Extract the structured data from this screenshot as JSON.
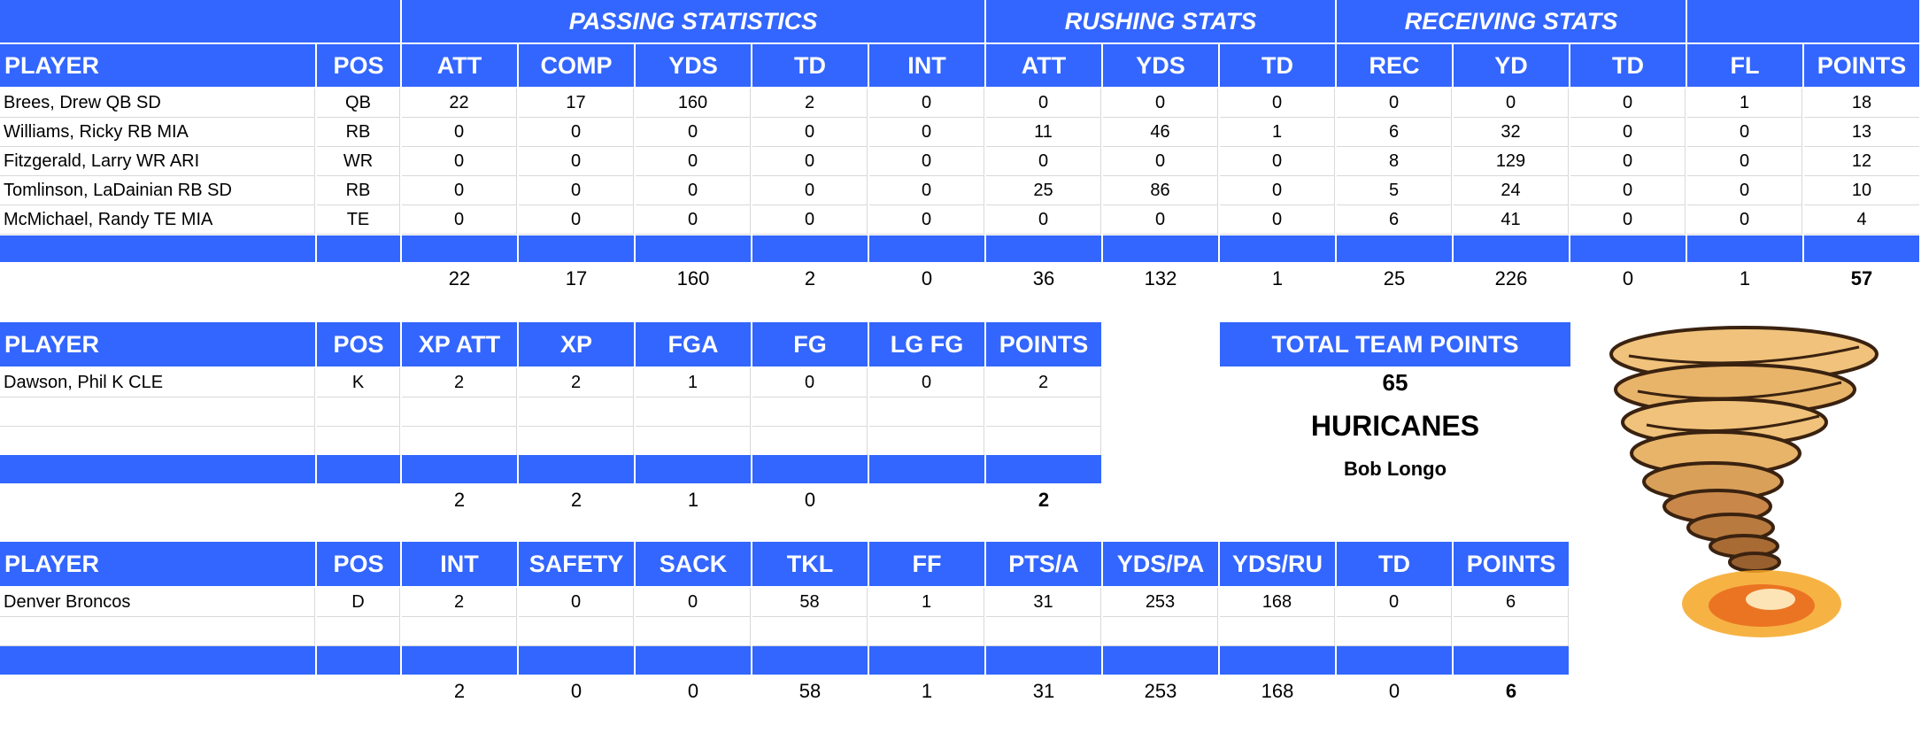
{
  "offense": {
    "group_headers": [
      "PASSING STATISTICS",
      "RUSHING STATS",
      "RECEIVING STATS"
    ],
    "columns": [
      "PLAYER",
      "POS",
      "ATT",
      "COMP",
      "YDS",
      "TD",
      "INT",
      "ATT",
      "YDS",
      "TD",
      "REC",
      "YD",
      "TD",
      "FL",
      "POINTS"
    ],
    "rows": [
      [
        "Brees, Drew QB SD",
        "QB",
        "22",
        "17",
        "160",
        "2",
        "0",
        "0",
        "0",
        "0",
        "0",
        "0",
        "0",
        "1",
        "18"
      ],
      [
        "Williams, Ricky RB MIA",
        "RB",
        "0",
        "0",
        "0",
        "0",
        "0",
        "11",
        "46",
        "1",
        "6",
        "32",
        "0",
        "0",
        "13"
      ],
      [
        "Fitzgerald, Larry WR ARI",
        "WR",
        "0",
        "0",
        "0",
        "0",
        "0",
        "0",
        "0",
        "0",
        "8",
        "129",
        "0",
        "0",
        "12"
      ],
      [
        "Tomlinson, LaDainian RB SD",
        "RB",
        "0",
        "0",
        "0",
        "0",
        "0",
        "25",
        "86",
        "0",
        "5",
        "24",
        "0",
        "0",
        "10"
      ],
      [
        "McMichael, Randy TE MIA",
        "TE",
        "0",
        "0",
        "0",
        "0",
        "0",
        "0",
        "0",
        "0",
        "6",
        "41",
        "0",
        "0",
        "4"
      ]
    ],
    "totals": [
      "",
      "",
      "22",
      "17",
      "160",
      "2",
      "0",
      "36",
      "132",
      "1",
      "25",
      "226",
      "0",
      "1",
      "57"
    ]
  },
  "kicker": {
    "columns": [
      "PLAYER",
      "POS",
      "XP ATT",
      "XP",
      "FGA",
      "FG",
      "LG FG",
      "POINTS"
    ],
    "rows": [
      [
        "Dawson, Phil K CLE",
        "K",
        "2",
        "2",
        "1",
        "0",
        "0",
        "2"
      ]
    ],
    "totals": [
      "",
      "",
      "2",
      "2",
      "1",
      "0",
      "",
      "2"
    ]
  },
  "team": {
    "total_label": "TOTAL TEAM POINTS",
    "total_points": "65",
    "name": "HURICANES",
    "owner": "Bob Longo",
    "logo_icon": "tornado-logo"
  },
  "defense": {
    "columns": [
      "PLAYER",
      "POS",
      "INT",
      "SAFETY",
      "SACK",
      "TKL",
      "FF",
      "PTS/A",
      "YDS/PA",
      "YDS/RU",
      "TD",
      "POINTS"
    ],
    "rows": [
      [
        "Denver Broncos",
        "D",
        "2",
        "0",
        "0",
        "58",
        "1",
        "31",
        "253",
        "168",
        "0",
        "6"
      ]
    ],
    "totals": [
      "",
      "",
      "2",
      "0",
      "0",
      "58",
      "1",
      "31",
      "253",
      "168",
      "0",
      "6"
    ]
  }
}
